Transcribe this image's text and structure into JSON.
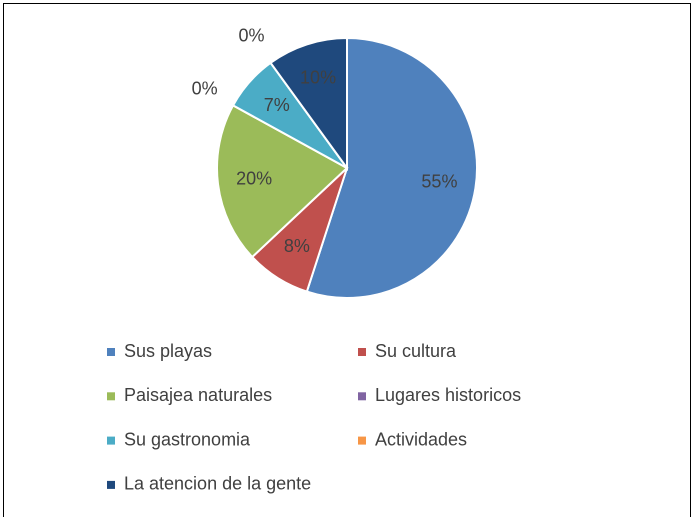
{
  "chart_data": {
    "type": "pie",
    "categories": [
      "Sus playas",
      "Su cultura",
      "Paisajea naturales",
      "Lugares historicos",
      "Su gastronomia",
      "Actividades",
      "La atencion de la gente"
    ],
    "values": [
      55,
      8,
      20,
      0,
      7,
      0,
      10
    ],
    "value_labels": [
      "55%",
      "8%",
      "20%",
      "0%",
      "7%",
      "0%",
      "10%"
    ],
    "colors": [
      "#4f81bd",
      "#c0504d",
      "#9bbb59",
      "#8064a2",
      "#4bacc6",
      "#f79646",
      "#1f497d"
    ],
    "legend": "bottom"
  }
}
